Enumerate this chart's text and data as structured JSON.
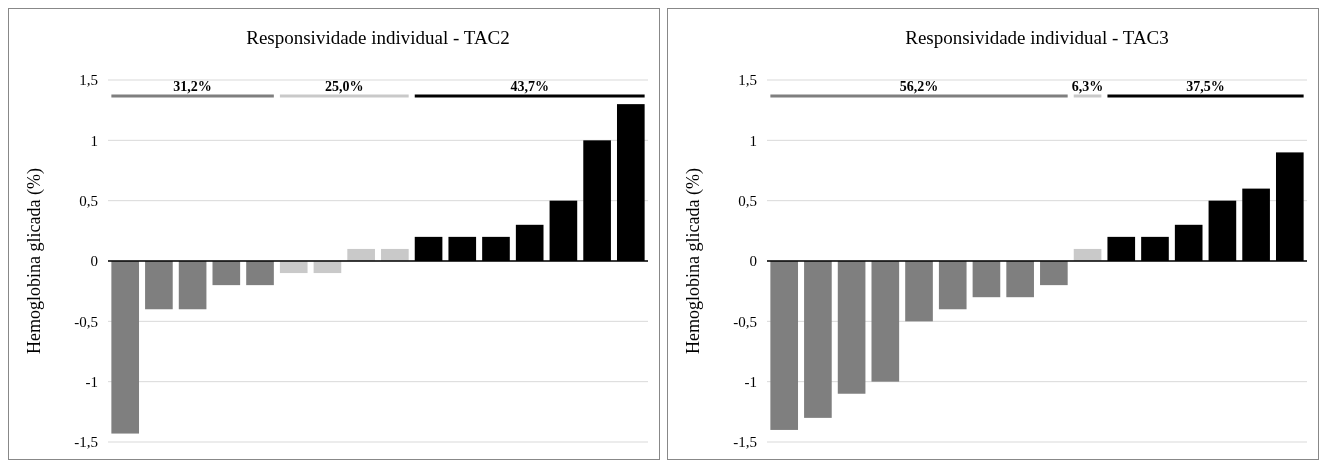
{
  "chart_data": [
    {
      "type": "bar",
      "title": "Responsividade individual - TAC2",
      "ylabel": "Hemoglobina glicada (%)",
      "categories": [
        null,
        null,
        null,
        null,
        null,
        null,
        null,
        null,
        null,
        null,
        null,
        null,
        null,
        null,
        null,
        null
      ],
      "values": [
        -1.43,
        -0.4,
        -0.4,
        -0.2,
        -0.2,
        -0.1,
        -0.1,
        0.1,
        0.1,
        0.2,
        0.2,
        0.2,
        0.3,
        0.5,
        1.0,
        1.3
      ],
      "colors": [
        "#7f7f7f",
        "#7f7f7f",
        "#7f7f7f",
        "#7f7f7f",
        "#7f7f7f",
        "#c9c9c9",
        "#c9c9c9",
        "#c9c9c9",
        "#c9c9c9",
        "#000000",
        "#000000",
        "#000000",
        "#000000",
        "#000000",
        "#000000",
        "#000000"
      ],
      "annotations": [
        "31,2%",
        "25,0%",
        "43,7%"
      ],
      "ylim": [
        -1.5,
        1.5
      ],
      "yticks": [
        {
          "value": -1.5,
          "label": "-1,5"
        },
        -1,
        {
          "value": -0.5,
          "label": "-0,5"
        },
        0,
        {
          "value": 0.5,
          "label": "0,5"
        },
        1,
        {
          "value": 1.5,
          "label": "1,5"
        }
      ],
      "grid": "y"
    },
    {
      "type": "bar",
      "title": "Responsividade individual - TAC3",
      "ylabel": "Hemoglobina glicada (%)",
      "categories": [
        null,
        null,
        null,
        null,
        null,
        null,
        null,
        null,
        null,
        null,
        null,
        null,
        null,
        null,
        null,
        null
      ],
      "values": [
        -1.4,
        -1.3,
        -1.1,
        -1.0,
        -0.5,
        -0.4,
        -0.3,
        -0.3,
        -0.2,
        0.1,
        0.2,
        0.2,
        0.3,
        0.5,
        0.6,
        0.9
      ],
      "colors": [
        "#7f7f7f",
        "#7f7f7f",
        "#7f7f7f",
        "#7f7f7f",
        "#7f7f7f",
        "#7f7f7f",
        "#7f7f7f",
        "#7f7f7f",
        "#7f7f7f",
        "#c9c9c9",
        "#000000",
        "#000000",
        "#000000",
        "#000000",
        "#000000",
        "#000000"
      ],
      "annotations": [
        "56,2%",
        "6,3%",
        "37,5%"
      ],
      "ylim": [
        -1.5,
        1.5
      ],
      "yticks": [
        {
          "value": -1.5,
          "label": "-1,5"
        },
        -1,
        {
          "value": -0.5,
          "label": "-0,5"
        },
        0,
        {
          "value": 0.5,
          "label": "0,5"
        },
        1,
        {
          "value": 1.5,
          "label": "1,5"
        }
      ],
      "grid": "y"
    }
  ]
}
